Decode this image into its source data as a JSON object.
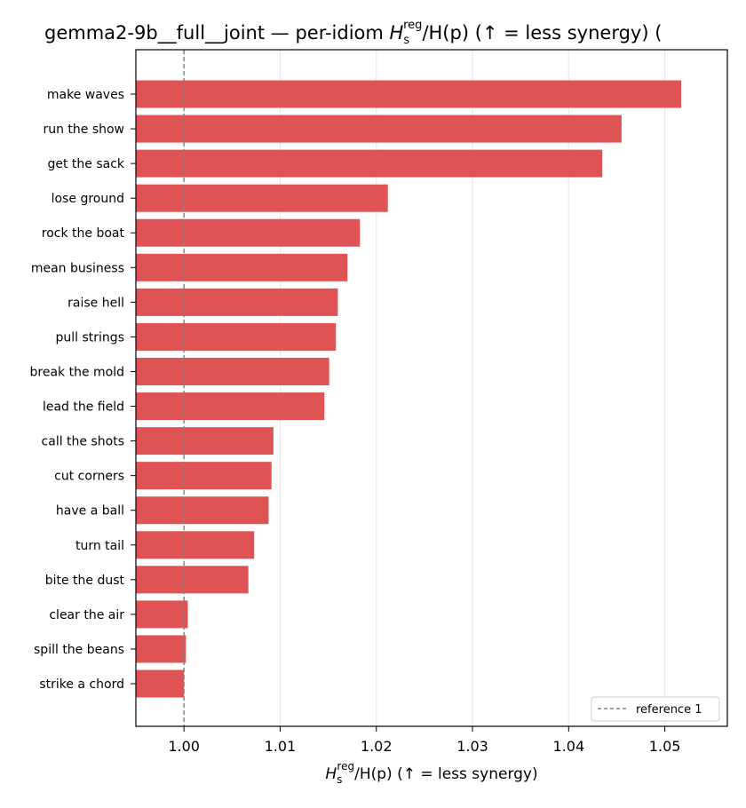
{
  "chart_data": {
    "type": "bar",
    "orientation": "horizontal",
    "title": {
      "prefix": "gemma2-9b__full__joint — per-idiom ",
      "h": "H",
      "sub": "s",
      "sup": "reg",
      "mid": "/H(p)  (↑ = less synergy) ("
    },
    "xlabel": {
      "h": "H",
      "sub": "s",
      "sup": "reg",
      "rest": "/H(p)  (↑ = less synergy)"
    },
    "categories": [
      "make waves",
      "run the show",
      "get the sack",
      "lose ground",
      "rock the boat",
      "mean business",
      "raise hell",
      "pull strings",
      "break the mold",
      "lead the field",
      "call the shots",
      "cut corners",
      "have a ball",
      "turn tail",
      "bite the dust",
      "clear the air",
      "spill the beans",
      "strike a chord"
    ],
    "values": [
      1.0517,
      1.0455,
      1.0435,
      1.0212,
      1.0183,
      1.017,
      1.016,
      1.0158,
      1.0151,
      1.0146,
      1.0093,
      1.0091,
      1.0088,
      1.0073,
      1.0067,
      1.0004,
      1.0002,
      1.0
    ],
    "xlim": [
      0.995,
      1.0565
    ],
    "xticks": [
      "1.00",
      "1.01",
      "1.02",
      "1.03",
      "1.04",
      "1.05"
    ],
    "reference_line": {
      "value": 1.0,
      "label": "reference 1"
    },
    "legend_position": "bottom-right",
    "grid": "x",
    "bar_color": "#e05355"
  }
}
